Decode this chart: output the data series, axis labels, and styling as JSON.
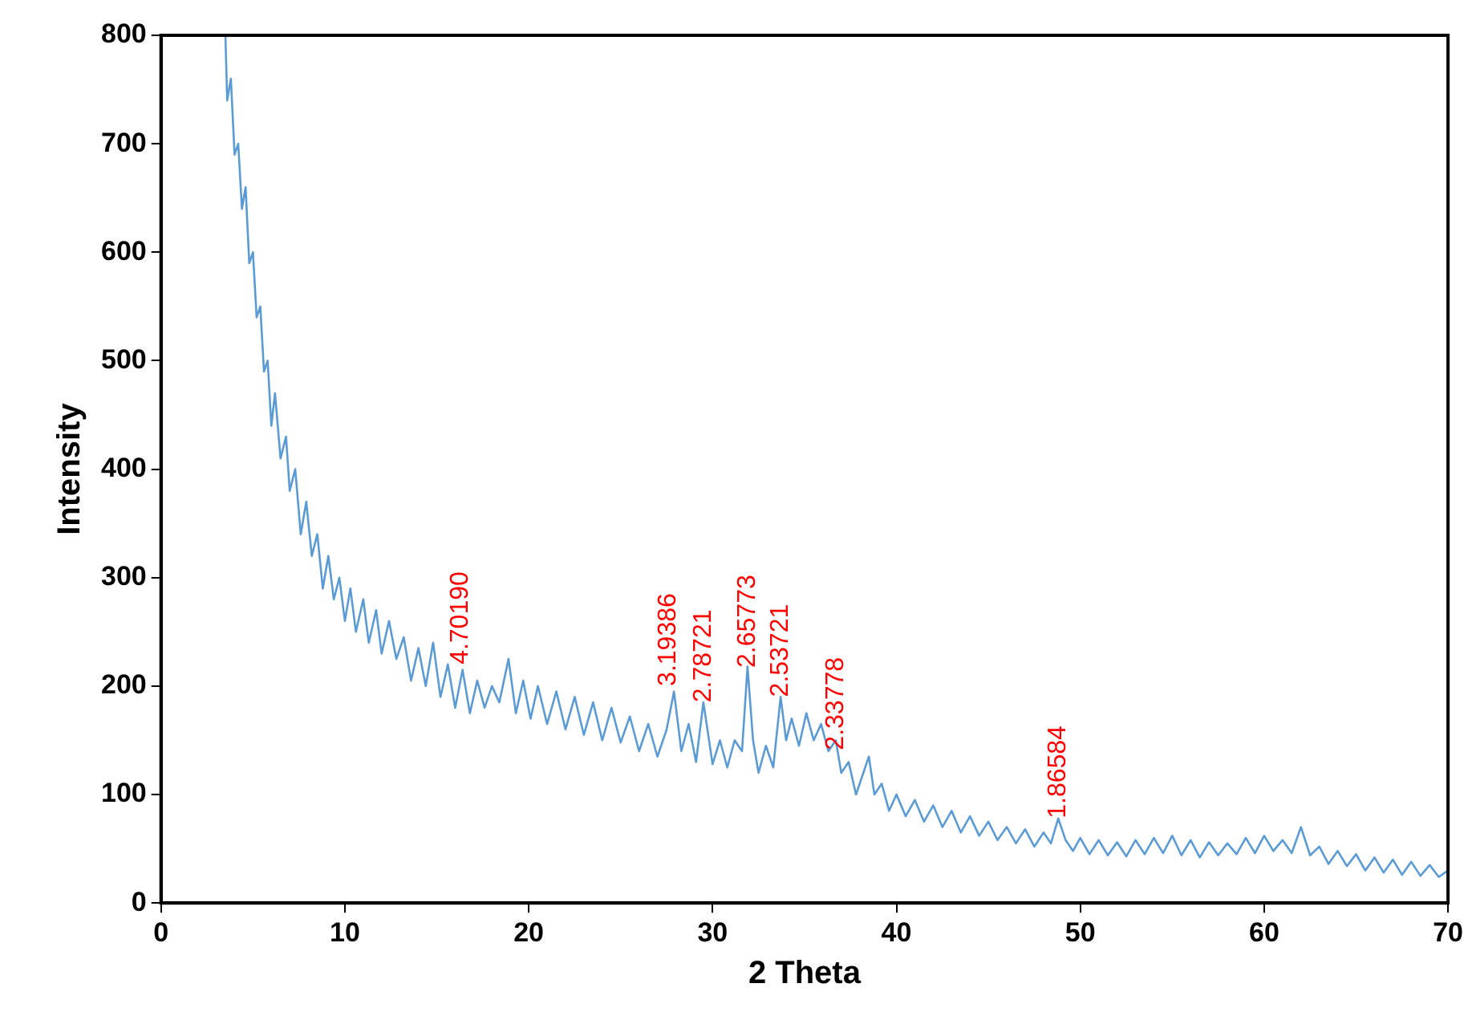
{
  "chart_data": {
    "type": "line",
    "xlabel": "2 Theta",
    "ylabel": "Intensity",
    "xlim": [
      0,
      70
    ],
    "xticks": [
      0,
      10,
      20,
      30,
      40,
      50,
      60,
      70
    ],
    "ylim": [
      0,
      800
    ],
    "yticks": [
      0,
      100,
      200,
      300,
      400,
      500,
      600,
      700,
      800
    ],
    "grid": false,
    "legend": false,
    "marker": "none",
    "line_style": "solid",
    "series": [
      {
        "color": "#5b9bd5",
        "x": [
          3.5,
          3.6,
          3.8,
          4.0,
          4.2,
          4.4,
          4.6,
          4.8,
          5.0,
          5.2,
          5.4,
          5.6,
          5.8,
          6.0,
          6.2,
          6.5,
          6.8,
          7.0,
          7.3,
          7.6,
          7.9,
          8.2,
          8.5,
          8.8,
          9.1,
          9.4,
          9.7,
          10.0,
          10.3,
          10.6,
          11.0,
          11.3,
          11.7,
          12.0,
          12.4,
          12.8,
          13.2,
          13.6,
          14.0,
          14.4,
          14.8,
          15.2,
          15.6,
          16.0,
          16.4,
          16.8,
          17.2,
          17.6,
          18.0,
          18.4,
          18.9,
          19.3,
          19.7,
          20.1,
          20.5,
          21.0,
          21.5,
          22.0,
          22.5,
          23.0,
          23.5,
          24.0,
          24.5,
          25.0,
          25.5,
          26.0,
          26.5,
          27.0,
          27.5,
          27.9,
          28.3,
          28.7,
          29.1,
          29.5,
          30.0,
          30.4,
          30.8,
          31.2,
          31.6,
          31.9,
          32.2,
          32.5,
          32.9,
          33.3,
          33.7,
          34.0,
          34.3,
          34.7,
          35.1,
          35.5,
          35.9,
          36.3,
          36.7,
          37.0,
          37.4,
          37.8,
          38.2,
          38.5,
          38.8,
          39.2,
          39.6,
          40.0,
          40.5,
          41.0,
          41.5,
          42.0,
          42.5,
          43.0,
          43.5,
          44.0,
          44.5,
          45.0,
          45.5,
          46.0,
          46.5,
          47.0,
          47.5,
          48.0,
          48.4,
          48.8,
          49.2,
          49.6,
          50.0,
          50.5,
          51.0,
          51.5,
          52.0,
          52.5,
          53.0,
          53.5,
          54.0,
          54.5,
          55.0,
          55.5,
          56.0,
          56.5,
          57.0,
          57.5,
          58.0,
          58.5,
          59.0,
          59.5,
          60.0,
          60.5,
          61.0,
          61.5,
          62.0,
          62.5,
          63.0,
          63.5,
          64.0,
          64.5,
          65.0,
          65.5,
          66.0,
          66.5,
          67.0,
          67.5,
          68.0,
          68.5,
          69.0,
          69.5,
          70.0
        ],
        "values": [
          800,
          740,
          760,
          690,
          700,
          640,
          660,
          590,
          600,
          540,
          550,
          490,
          500,
          440,
          470,
          410,
          430,
          380,
          400,
          340,
          370,
          320,
          340,
          290,
          320,
          280,
          300,
          260,
          290,
          250,
          280,
          240,
          270,
          230,
          260,
          225,
          245,
          205,
          235,
          200,
          240,
          190,
          220,
          180,
          215,
          175,
          205,
          180,
          200,
          185,
          225,
          175,
          205,
          170,
          200,
          165,
          195,
          160,
          190,
          155,
          185,
          150,
          180,
          148,
          172,
          140,
          165,
          135,
          160,
          195,
          140,
          165,
          130,
          185,
          128,
          150,
          125,
          150,
          140,
          218,
          150,
          120,
          145,
          125,
          190,
          150,
          170,
          145,
          175,
          150,
          165,
          140,
          150,
          120,
          130,
          100,
          120,
          135,
          100,
          110,
          85,
          100,
          80,
          95,
          75,
          90,
          70,
          85,
          65,
          80,
          62,
          75,
          58,
          70,
          55,
          68,
          52,
          65,
          55,
          78,
          58,
          48,
          60,
          45,
          58,
          44,
          56,
          43,
          58,
          45,
          60,
          46,
          62,
          44,
          58,
          42,
          56,
          44,
          55,
          45,
          60,
          46,
          62,
          48,
          58,
          46,
          70,
          44,
          52,
          36,
          48,
          34,
          45,
          30,
          42,
          28,
          40,
          26,
          38,
          25,
          35,
          24,
          30
        ]
      }
    ],
    "annotations": [
      {
        "text": "4.70190",
        "x": 16.3,
        "y": 220
      },
      {
        "text": "3.19386",
        "x": 27.6,
        "y": 200
      },
      {
        "text": "2.78721",
        "x": 29.5,
        "y": 185
      },
      {
        "text": "2.65773",
        "x": 31.9,
        "y": 217
      },
      {
        "text": "2.53721",
        "x": 33.7,
        "y": 190
      },
      {
        "text": "2.33778",
        "x": 36.7,
        "y": 141
      },
      {
        "text": "1.86584",
        "x": 48.8,
        "y": 78
      }
    ]
  }
}
